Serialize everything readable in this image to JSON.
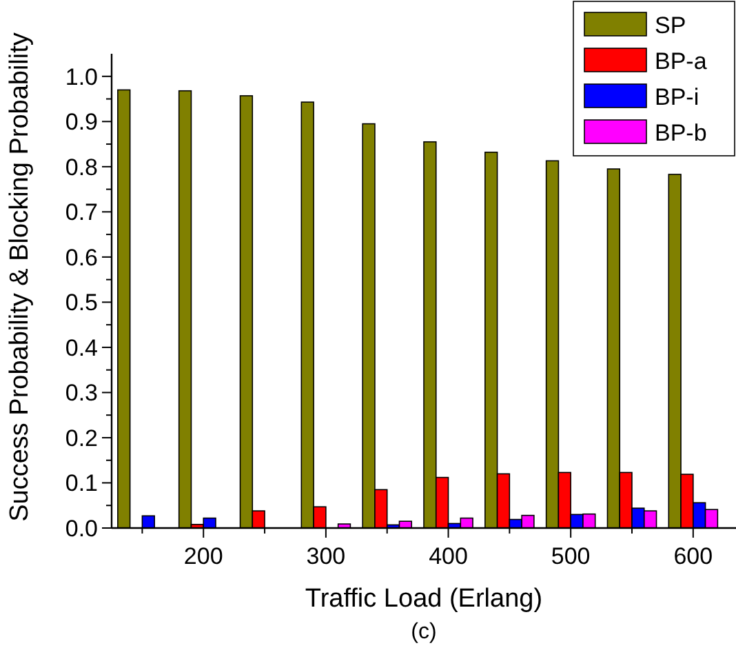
{
  "chart_data": {
    "type": "bar",
    "xlabel": "Traffic Load (Erlang)",
    "ylabel": "Success Probability & Blocking Probability",
    "annotations": [
      "(c)"
    ],
    "x": [
      150,
      200,
      250,
      300,
      350,
      400,
      450,
      500,
      550,
      600
    ],
    "series": [
      {
        "name": "SP",
        "color": "#808000",
        "values": [
          0.97,
          0.968,
          0.957,
          0.943,
          0.895,
          0.855,
          0.832,
          0.813,
          0.795,
          0.783
        ]
      },
      {
        "name": "BP-a",
        "color": "#ff0000",
        "values": [
          null,
          0.008,
          0.038,
          0.047,
          0.085,
          0.112,
          0.12,
          0.123,
          0.123,
          0.119
        ]
      },
      {
        "name": "BP-i",
        "color": "#0000ff",
        "values": [
          0.027,
          0.022,
          null,
          null,
          0.007,
          0.01,
          0.019,
          0.03,
          0.044,
          0.056
        ]
      },
      {
        "name": "BP-b",
        "color": "#ff00ff",
        "values": [
          0.0,
          null,
          null,
          0.009,
          0.015,
          0.022,
          0.028,
          0.031,
          0.038,
          0.041
        ]
      }
    ],
    "xlim": [
      125,
      635
    ],
    "xticks": [
      {
        "value": 150,
        "label": null
      },
      200,
      {
        "value": 250,
        "label": null
      },
      300,
      {
        "value": 350,
        "label": null
      },
      400,
      {
        "value": 450,
        "label": null
      },
      500,
      {
        "value": 550,
        "label": null
      },
      600
    ],
    "ylim": [
      0,
      1.05
    ],
    "yticks": [
      {
        "value": 0,
        "label": "0.0"
      },
      {
        "value": 0.05,
        "label": null
      },
      0.1,
      {
        "value": 0.15,
        "label": null
      },
      0.2,
      {
        "value": 0.25,
        "label": null
      },
      0.3,
      {
        "value": 0.35,
        "label": null
      },
      0.4,
      {
        "value": 0.45,
        "label": null
      },
      0.5,
      {
        "value": 0.55,
        "label": null
      },
      0.6,
      {
        "value": 0.65,
        "label": null
      },
      0.7,
      {
        "value": 0.75,
        "label": null
      },
      0.8,
      {
        "value": 0.85,
        "label": null
      },
      0.9,
      {
        "value": 0.95,
        "label": null
      },
      {
        "value": 1.0,
        "label": "1.0"
      }
    ],
    "legend": "top right",
    "grid": false
  }
}
